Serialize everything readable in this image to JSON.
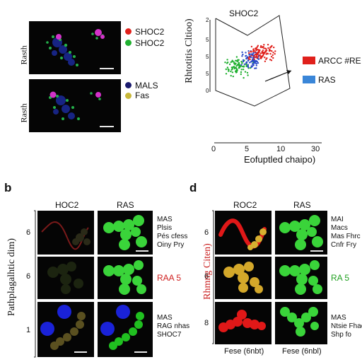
{
  "panel_a": {
    "row_labels": [
      "Rasth",
      "Rasth"
    ],
    "legend_top": [
      {
        "label": "SHOC2",
        "color": "#e0201b"
      },
      {
        "label": "SHOC2",
        "color": "#20b030"
      }
    ],
    "legend_bottom": [
      {
        "label": "MALS",
        "color": "#1a1a6e"
      },
      {
        "label": "Fas",
        "color": "#c8b83a"
      }
    ]
  },
  "scatter": {
    "title": "SHOC2",
    "ylabel": "Rhtotitis Cltioo)",
    "xlabel": "Eofuptled chaipo)",
    "x_ticks": [
      "0",
      "5",
      "10",
      "30"
    ],
    "legend": [
      {
        "label": "ARCC #RE",
        "color": "#e0201b"
      },
      {
        "label": "RAS",
        "color": "#3a86d8"
      }
    ]
  },
  "panel_b": {
    "letter": "b",
    "col_headers": [
      "HOC2",
      "RAS"
    ],
    "ylabel": "Pathplagalhtic dim)",
    "row_ticks": [
      "6",
      "6",
      "1"
    ],
    "row_labels": [
      [
        "MAS",
        "Plsis",
        "Pés cfess",
        "Oiny Pry"
      ],
      [
        "RAA 5"
      ],
      [
        "MAS",
        "RAG nhas",
        "SHOC7"
      ]
    ],
    "row2_label_color": "#d02020"
  },
  "panel_d": {
    "letter": "d",
    "col_headers": [
      "ROC2",
      "RAS"
    ],
    "ylabel": "Rhmng Citen)",
    "row_ticks": [
      "6",
      "6",
      "8"
    ],
    "row_labels": [
      [
        "MAI",
        "Macs",
        "Mas Fhrc",
        "Cnfr Fry"
      ],
      [
        "RA 5"
      ],
      [
        "MAS",
        "Ntsie Fhac",
        "Shp fo"
      ]
    ],
    "row2_label_color": "#20a020",
    "x_labels": [
      "Fese (6nbt)",
      "Fese (6nbl)"
    ]
  }
}
